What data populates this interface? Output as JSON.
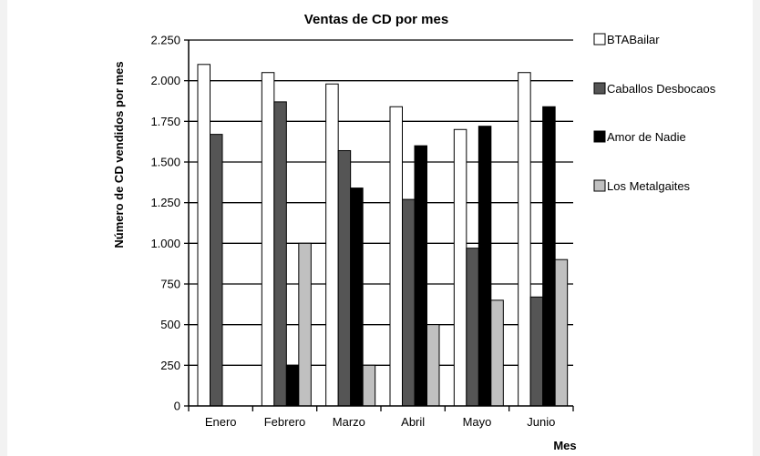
{
  "chart_data": {
    "type": "bar",
    "title": "Ventas de CD por mes",
    "xlabel": "Mes",
    "ylabel": "Número de CD vendidos por mes",
    "categories": [
      "Enero",
      "Febrero",
      "Marzo",
      "Abril",
      "Mayo",
      "Junio"
    ],
    "ylim": [
      0,
      2250
    ],
    "yticks": [
      0,
      250,
      500,
      750,
      1000,
      1250,
      1500,
      1750,
      2000,
      2250
    ],
    "ytick_labels": [
      "0",
      "250",
      "500",
      "750",
      "1.000",
      "1.250",
      "1.500",
      "1.750",
      "2.000",
      "2.250"
    ],
    "grid": true,
    "legend_position": "right",
    "series": [
      {
        "name": "BTABailar",
        "color": "#ffffff",
        "values": [
          2100,
          2050,
          1980,
          1840,
          1700,
          2050
        ]
      },
      {
        "name": "Caballos Desbocaos",
        "color": "#555555",
        "values": [
          1670,
          1870,
          1570,
          1270,
          970,
          670
        ]
      },
      {
        "name": "Amor de Nadie",
        "color": "#000000",
        "values": [
          0,
          250,
          1340,
          1600,
          1720,
          1840
        ]
      },
      {
        "name": "Los Metalgaites",
        "color": "#c0c0c0",
        "values": [
          0,
          1000,
          250,
          500,
          650,
          900
        ]
      }
    ]
  }
}
